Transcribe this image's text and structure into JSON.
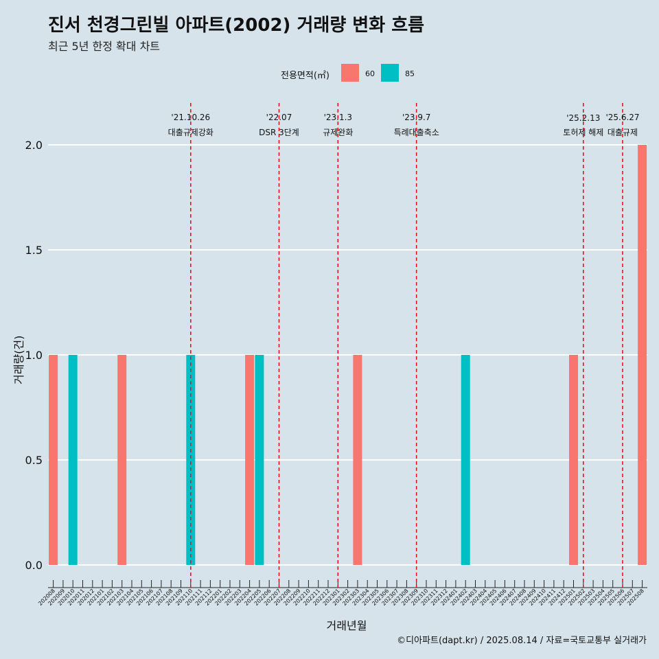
{
  "title": "진서 천경그린빌 아파트(2002) 거래량 변화 흐름",
  "subtitle": "최근 5년 한정 확대 차트",
  "caption": "©디아파트(dapt.kr) / 2025.08.14 / 자료=국토교통부 실거래가",
  "legend": {
    "title": "전용면적(㎡)",
    "items": [
      {
        "label": "60",
        "color": "#f8766d"
      },
      {
        "label": "85",
        "color": "#00bfc4"
      }
    ]
  },
  "chart_data": {
    "type": "bar",
    "xlabel": "거래년월",
    "ylabel": "거래량(건)",
    "ylim": [
      0,
      2
    ],
    "yticks": [
      "0.0",
      "0.5",
      "1.0",
      "1.5",
      "2.0"
    ],
    "categories": [
      "202008",
      "202009",
      "202010",
      "202011",
      "202012",
      "202101",
      "202102",
      "202103",
      "202104",
      "202105",
      "202106",
      "202107",
      "202108",
      "202109",
      "202110",
      "202111",
      "202112",
      "202201",
      "202202",
      "202203",
      "202204",
      "202205",
      "202206",
      "202207",
      "202208",
      "202209",
      "202210",
      "202211",
      "202212",
      "202301",
      "202302",
      "202303",
      "202304",
      "202305",
      "202306",
      "202307",
      "202308",
      "202309",
      "202310",
      "202311",
      "202312",
      "202401",
      "202402",
      "202403",
      "202404",
      "202405",
      "202406",
      "202407",
      "202408",
      "202409",
      "202410",
      "202411",
      "202412",
      "202501",
      "202502",
      "202503",
      "202504",
      "202505",
      "202506",
      "202507",
      "202508"
    ],
    "series": [
      {
        "name": "60",
        "color": "#f8766d",
        "points": [
          {
            "x": "202008",
            "y": 1
          },
          {
            "x": "202103",
            "y": 1
          },
          {
            "x": "202204",
            "y": 1
          },
          {
            "x": "202303",
            "y": 1
          },
          {
            "x": "202501",
            "y": 1
          },
          {
            "x": "202508",
            "y": 2
          }
        ]
      },
      {
        "name": "85",
        "color": "#00bfc4",
        "points": [
          {
            "x": "202010",
            "y": 1
          },
          {
            "x": "202110",
            "y": 1
          },
          {
            "x": "202205",
            "y": 1
          },
          {
            "x": "202402",
            "y": 1
          }
        ]
      }
    ],
    "annotations": [
      {
        "date": "'21.10.26",
        "label": "대출규제강화",
        "x": "202110"
      },
      {
        "date": "'22.07",
        "label": "DSR 3단계",
        "x": "202207"
      },
      {
        "date": "'23.1.3",
        "label": "규제완화",
        "x": "202301"
      },
      {
        "date": "'23.9.7",
        "label": "특례대출축소",
        "x": "202309"
      },
      {
        "date": "'25.2.13",
        "label": "토허제 해제",
        "x": "202502"
      },
      {
        "date": "'25.6.27",
        "label": "대출규제",
        "x": "202506"
      }
    ],
    "grid": true,
    "legend_position": "top"
  }
}
